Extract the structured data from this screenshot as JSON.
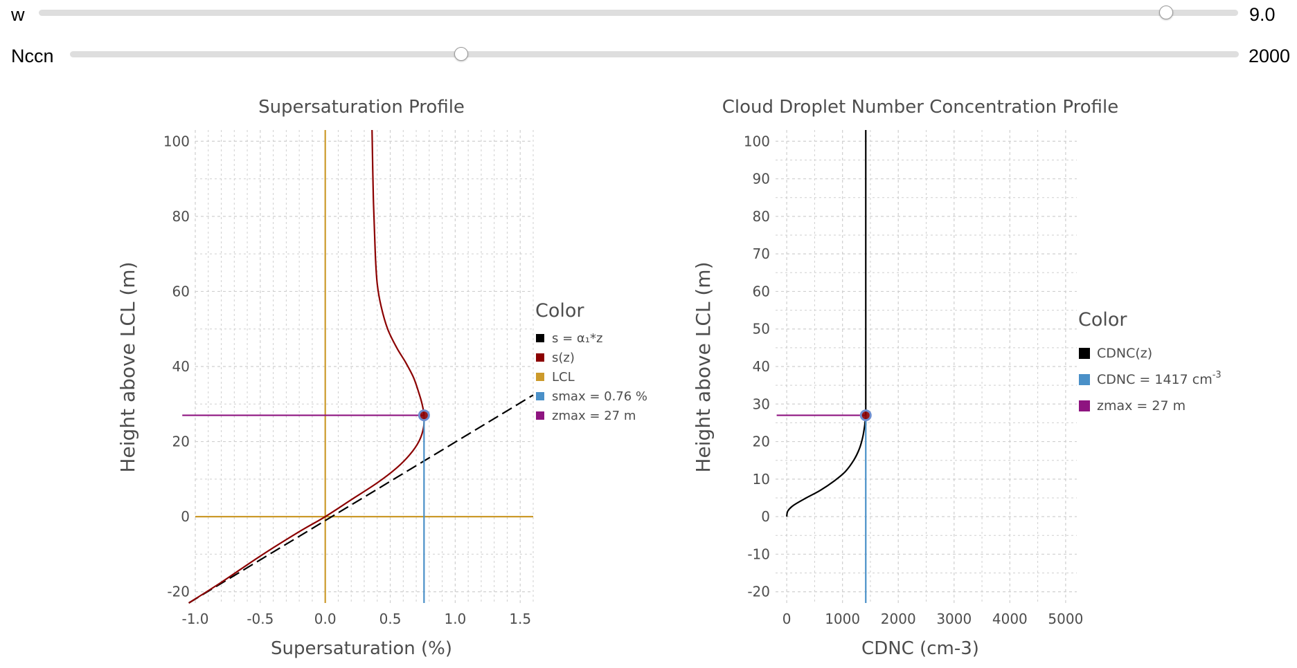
{
  "controls": {
    "w": {
      "label": "w",
      "value": "9.0",
      "fraction": 0.94
    },
    "nccn": {
      "label": "Nccn",
      "value": "2000",
      "fraction": 0.335
    }
  },
  "colors": {
    "s_linear": "#000000",
    "s_z": "#8b0000",
    "lcl": "#cc9a2b",
    "smax": "#4a90c8",
    "zmax": "#8e1480",
    "cdnc": "#000000",
    "grid": "#cfcfcf",
    "text": "#4d4d4d"
  },
  "chart_data": [
    {
      "type": "line",
      "title": "Supersaturation Profile",
      "xlabel": "Supersaturation (%)",
      "ylabel": "Height above LCL (m)",
      "xlim": [
        -1.0,
        1.6
      ],
      "ylim": [
        -23,
        103
      ],
      "xticks": [
        -1.0,
        -0.5,
        0.0,
        0.5,
        1.0,
        1.5
      ],
      "xtick_labels": [
        "-1.0",
        "-0.5",
        "0.0",
        "0.5",
        "1.0",
        "1.5"
      ],
      "yticks": [
        -20,
        0,
        20,
        40,
        60,
        80,
        100
      ],
      "ytick_labels": [
        "-20",
        "0",
        "20",
        "40",
        "60",
        "80",
        "100"
      ],
      "grid": true,
      "legend_title": "Color",
      "legend_position": "right",
      "series": [
        {
          "name": "s = α₁*z",
          "style": "dashed",
          "color_key": "s_linear",
          "x": [
            -1.05,
            1.6
          ],
          "y": [
            -23,
            32.4
          ]
        },
        {
          "name": "s(z)",
          "style": "solid",
          "color_key": "s_z",
          "x": [
            -1.05,
            -0.8,
            -0.5,
            -0.2,
            0.0,
            0.2,
            0.4,
            0.55,
            0.65,
            0.72,
            0.755,
            0.76,
            0.745,
            0.72,
            0.68,
            0.62,
            0.55,
            0.48,
            0.43,
            0.4,
            0.385,
            0.37,
            0.36
          ],
          "y": [
            -23,
            -17.5,
            -10.5,
            -4,
            0,
            4.5,
            9,
            13,
            16.5,
            20,
            23.5,
            27,
            30,
            33,
            37,
            41,
            45,
            50,
            56,
            62,
            70,
            85,
            103
          ]
        },
        {
          "name": "LCL",
          "style": "solid",
          "color_key": "lcl",
          "lines": [
            {
              "x": [
                0,
                0
              ],
              "y": [
                -23,
                103
              ]
            },
            {
              "x": [
                -1.0,
                1.6
              ],
              "y": [
                0,
                0
              ]
            }
          ]
        },
        {
          "name": "smax = 0.76 %",
          "style": "solid",
          "color_key": "smax",
          "x": [
            0.76,
            0.76
          ],
          "y": [
            -23,
            27
          ]
        },
        {
          "name": "zmax = 27 m",
          "style": "solid",
          "color_key": "zmax",
          "x": [
            -1.1,
            0.76
          ],
          "y": [
            27,
            27
          ]
        }
      ],
      "marker": {
        "x": 0.76,
        "y": 27
      }
    },
    {
      "type": "line",
      "title": "Cloud Droplet Number Concentration Profile",
      "xlabel": "CDNC (cm-3)",
      "ylabel": "Height above LCL (m)",
      "xlim": [
        -200,
        5200
      ],
      "ylim": [
        -23,
        103
      ],
      "xticks": [
        0,
        1000,
        2000,
        3000,
        4000,
        5000
      ],
      "xtick_labels": [
        "0",
        "1000",
        "2000",
        "3000",
        "4000",
        "5000"
      ],
      "yticks": [
        -20,
        -10,
        0,
        10,
        20,
        30,
        40,
        50,
        60,
        70,
        80,
        90,
        100
      ],
      "ytick_labels": [
        "-20",
        "-10",
        "0",
        "10",
        "20",
        "30",
        "40",
        "50",
        "60",
        "70",
        "80",
        "90",
        "100"
      ],
      "grid": true,
      "legend_title": "Color",
      "legend_position": "right",
      "legend_labels": [
        "CDNC(z)",
        "CDNC = 1417 cm",
        "-3",
        "zmax = 27 m"
      ],
      "series": [
        {
          "name": "CDNC(z)",
          "style": "solid",
          "color_key": "cdnc",
          "x": [
            0,
            20,
            120,
            350,
            600,
            850,
            1050,
            1200,
            1300,
            1360,
            1395,
            1410,
            1417,
            1417,
            1417
          ],
          "y": [
            0,
            1.5,
            3,
            5,
            7,
            9.5,
            12,
            15,
            18,
            21,
            24,
            26,
            27,
            60,
            103
          ]
        },
        {
          "name": "CDNC = 1417 cm-3",
          "style": "solid",
          "color_key": "smax",
          "x": [
            1417,
            1417
          ],
          "y": [
            -23,
            27
          ]
        },
        {
          "name": "zmax = 27 m",
          "style": "solid",
          "color_key": "zmax",
          "x": [
            -180,
            1417
          ],
          "y": [
            27,
            27
          ]
        }
      ],
      "marker": {
        "x": 1417,
        "y": 27
      }
    }
  ]
}
